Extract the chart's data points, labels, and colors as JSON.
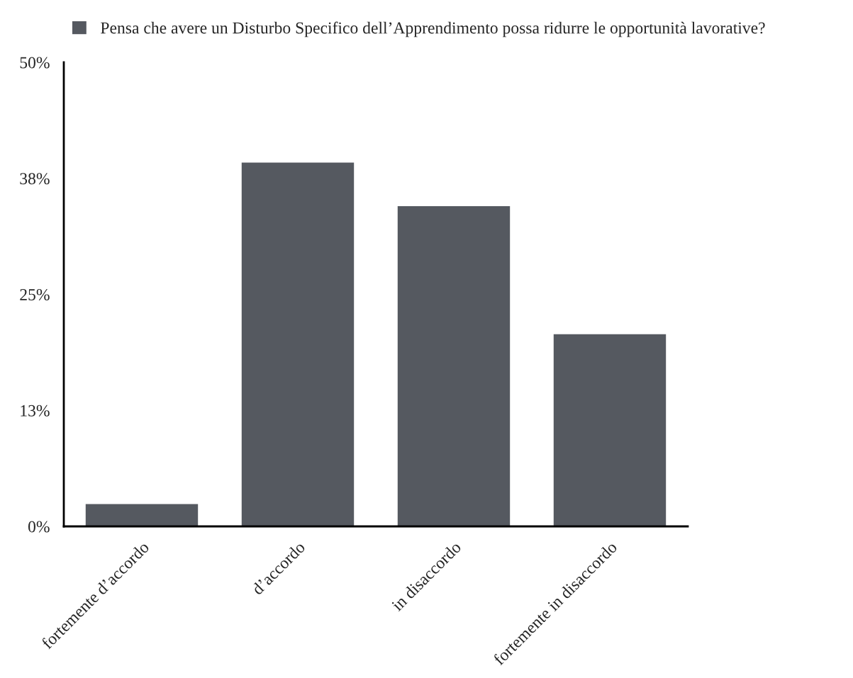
{
  "chart_data": {
    "type": "bar",
    "categories": [
      "fortemente d’accordo",
      "d’accordo",
      "in disaccordo",
      "fortemente in disaccordo"
    ],
    "series": [
      {
        "name": "Pensa che avere un Disturbo Specifico dell’Apprendimento possa ridurre le opportunità lavorative?",
        "color": "#555960",
        "values": [
          2.4,
          39.2,
          34.5,
          20.7
        ]
      }
    ],
    "ylim": [
      0,
      50
    ],
    "yticks": [
      {
        "value": 0,
        "label": "0%"
      },
      {
        "value": 12.5,
        "label": "13%"
      },
      {
        "value": 25,
        "label": "25%"
      },
      {
        "value": 37.5,
        "label": "38%"
      },
      {
        "value": 50,
        "label": "50%"
      }
    ],
    "legend": "top",
    "grid": false
  }
}
